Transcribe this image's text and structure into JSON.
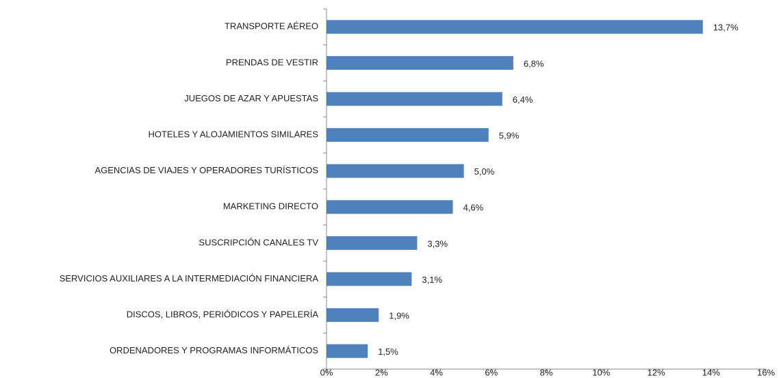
{
  "chart_data": {
    "type": "bar",
    "orientation": "horizontal",
    "categories": [
      "TRANSPORTE AÉREO",
      "PRENDAS DE VESTIR",
      "JUEGOS DE AZAR Y APUESTAS",
      "HOTELES  Y ALOJAMIENTOS SIMILARES",
      "AGENCIAS DE VIAJES Y OPERADORES TURÍSTICOS",
      "MARKETING DIRECTO",
      "SUSCRIPCIÓN CANALES TV",
      "SERVICIOS AUXILIARES A LA INTERMEDIACIÓN FINANCIERA",
      "DISCOS, LIBROS, PERIÓDICOS Y PAPELERÍA",
      "ORDENADORES Y PROGRAMAS INFORMÁTICOS"
    ],
    "values": [
      13.7,
      6.8,
      6.4,
      5.9,
      5.0,
      4.6,
      3.3,
      3.1,
      1.9,
      1.5
    ],
    "value_labels": [
      "13,7%",
      "6,8%",
      "6,4%",
      "5,9%",
      "5,0%",
      "4,6%",
      "3,3%",
      "3,1%",
      "1,9%",
      "1,5%"
    ],
    "color": "#4f81bd",
    "xlim": [
      0,
      16
    ],
    "xticks": [
      {
        "value": 0,
        "label": "0%"
      },
      {
        "value": 2,
        "label": "2%"
      },
      {
        "value": 4,
        "label": "4%"
      },
      {
        "value": 6,
        "label": "6%"
      },
      {
        "value": 8,
        "label": "8%"
      },
      {
        "value": 10,
        "label": "10%"
      },
      {
        "value": 12,
        "label": "12%"
      },
      {
        "value": 14,
        "label": "14%"
      },
      {
        "value": 16,
        "label": "16%"
      }
    ],
    "grid": false
  }
}
